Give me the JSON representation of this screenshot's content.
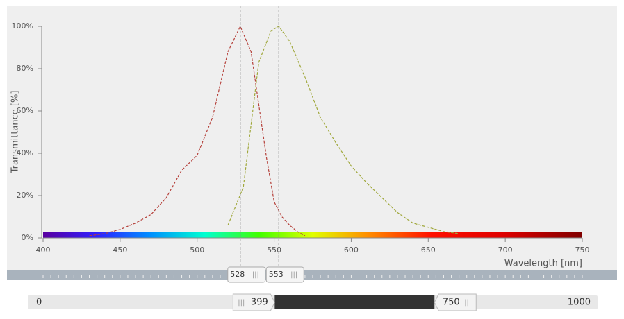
{
  "chart_data": {
    "type": "line",
    "y_label": "Transmittance [%]",
    "x_label": "Wavelength [nm]",
    "xlim": [
      400,
      750
    ],
    "xticks": [
      400,
      450,
      500,
      550,
      600,
      650,
      700,
      750
    ],
    "ylim": [
      0,
      100
    ],
    "yticks": [
      {
        "value": 0,
        "label": "0%"
      },
      {
        "value": 20,
        "label": "20%"
      },
      {
        "value": 40,
        "label": "40%"
      },
      {
        "value": 60,
        "label": "60%"
      },
      {
        "value": 80,
        "label": "80%"
      },
      {
        "value": 100,
        "label": "100%"
      }
    ],
    "series": [
      {
        "color": "#b5403a",
        "x": [
          430,
          440,
          450,
          460,
          470,
          480,
          490,
          500,
          510,
          520,
          528,
          535,
          540,
          545,
          550,
          555,
          560,
          565,
          570
        ],
        "values": [
          1,
          2,
          4,
          7,
          11,
          19,
          32,
          39,
          57,
          88,
          100,
          88,
          63,
          38,
          17,
          10,
          6,
          3,
          1
        ]
      },
      {
        "color": "#a0a83c",
        "x": [
          520,
          530,
          540,
          548,
          553,
          560,
          570,
          580,
          590,
          600,
          610,
          620,
          630,
          640,
          650,
          660,
          670
        ],
        "values": [
          6,
          24,
          83,
          98,
          100,
          93,
          76,
          57,
          45,
          34,
          26,
          19,
          12,
          7,
          5,
          3,
          2
        ]
      }
    ],
    "markers": [
      528,
      553
    ]
  },
  "slider": {
    "min": 0,
    "max": 1000,
    "low": 399,
    "high": 750
  }
}
